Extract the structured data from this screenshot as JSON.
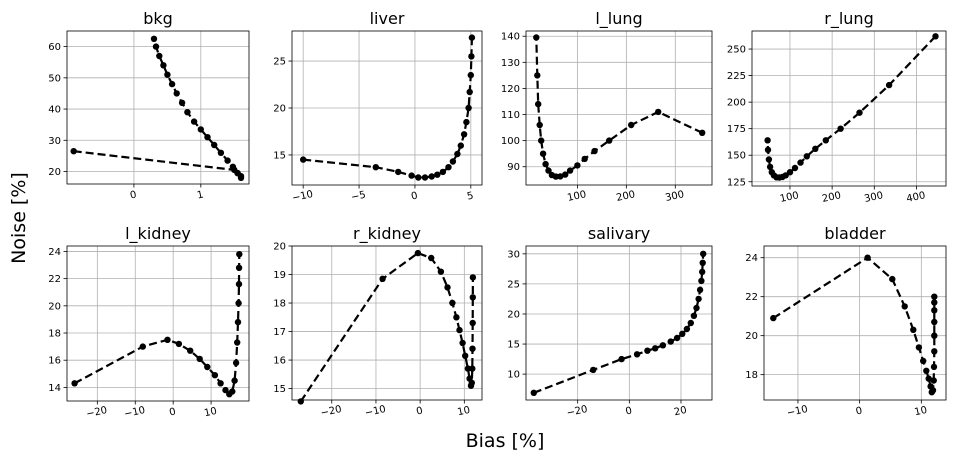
{
  "figure": {
    "xlabel": "Bias [%]",
    "ylabel": "Noise [%]"
  },
  "chart_data": [
    {
      "type": "line",
      "title": "bkg",
      "xlim": [
        -1.0,
        1.72
      ],
      "ylim": [
        16,
        65
      ],
      "xticks": [
        0,
        1
      ],
      "yticks": [
        20,
        30,
        40,
        50,
        60
      ],
      "grid": true,
      "x": [
        -0.9,
        1.5,
        1.55,
        1.6,
        1.6,
        1.55,
        1.48,
        1.4,
        1.3,
        1.2,
        1.1,
        1.0,
        0.9,
        0.8,
        0.72,
        0.64,
        0.57,
        0.5,
        0.44,
        0.38,
        0.33,
        0.3
      ],
      "y": [
        26.5,
        20.5,
        19.5,
        18.5,
        18.0,
        19.5,
        21.5,
        23.5,
        26.0,
        28.5,
        31.0,
        33.5,
        36.0,
        39.0,
        42.0,
        45.0,
        48.0,
        51.0,
        54.0,
        57.0,
        60.0,
        62.5
      ]
    },
    {
      "type": "line",
      "title": "liver",
      "xlim": [
        -11,
        6
      ],
      "ylim": [
        11.8,
        28.2
      ],
      "xticks": [
        -10,
        -5,
        0,
        5
      ],
      "yticks": [
        15,
        20,
        25
      ],
      "grid": true,
      "x": [
        -10,
        -3.5,
        -1.5,
        -0.3,
        0.3,
        0.9,
        1.5,
        2.0,
        2.5,
        3.0,
        3.4,
        3.8,
        4.1,
        4.4,
        4.6,
        4.8,
        4.9,
        5.0,
        5.05,
        5.1
      ],
      "y": [
        14.5,
        13.7,
        13.2,
        12.8,
        12.6,
        12.6,
        12.7,
        12.9,
        13.2,
        13.7,
        14.3,
        15.1,
        16.0,
        17.2,
        18.5,
        20.0,
        21.7,
        23.5,
        25.5,
        27.5
      ]
    },
    {
      "type": "line",
      "title": "l_lung",
      "xlim": [
        -5,
        375
      ],
      "ylim": [
        83,
        142
      ],
      "xticks": [
        100,
        200,
        300
      ],
      "yticks": [
        90,
        100,
        110,
        120,
        130,
        140
      ],
      "grid": true,
      "x": [
        355,
        265,
        210,
        165,
        135,
        115,
        100,
        85,
        75,
        65,
        56,
        48,
        41,
        35,
        30,
        26,
        23,
        20,
        18,
        16
      ],
      "y": [
        103,
        111,
        106,
        100,
        96,
        93,
        90.5,
        88.5,
        87,
        86.3,
        86.2,
        86.8,
        88.5,
        91,
        95,
        100,
        106,
        114,
        125,
        139.5
      ]
    },
    {
      "type": "line",
      "title": "r_lung",
      "xlim": [
        10,
        470
      ],
      "ylim": [
        121,
        267
      ],
      "xticks": [
        100,
        200,
        300,
        400
      ],
      "yticks": [
        125,
        150,
        175,
        200,
        225,
        250
      ],
      "grid": true,
      "x": [
        445,
        335,
        265,
        220,
        185,
        160,
        140,
        125,
        112,
        100,
        90,
        82,
        75,
        68,
        62,
        57,
        53,
        50,
        48,
        47
      ],
      "y": [
        262,
        216,
        190,
        175,
        164,
        156,
        149,
        143,
        138,
        134,
        131,
        129.5,
        129,
        129.2,
        131,
        134,
        139,
        146,
        155,
        164
      ]
    },
    {
      "type": "line",
      "title": "l_kidney",
      "xlim": [
        -28,
        20
      ],
      "ylim": [
        13.0,
        24.4
      ],
      "xticks": [
        -20,
        -10,
        0,
        10
      ],
      "yticks": [
        14,
        16,
        18,
        20,
        22,
        24
      ],
      "grid": true,
      "x": [
        -26,
        -8,
        -1.5,
        1.5,
        4.5,
        7,
        9,
        11,
        12.5,
        13.8,
        14.8,
        15.6,
        16.2,
        16.6,
        16.9,
        17.1,
        17.25,
        17.35,
        17.4,
        17.45
      ],
      "y": [
        14.3,
        17.0,
        17.5,
        17.2,
        16.7,
        16.1,
        15.5,
        14.9,
        14.3,
        13.8,
        13.5,
        13.7,
        14.5,
        15.8,
        17.3,
        18.8,
        20.2,
        21.6,
        22.8,
        23.8
      ]
    },
    {
      "type": "line",
      "title": "r_kidney",
      "xlim": [
        -29,
        14
      ],
      "ylim": [
        14.6,
        20.0
      ],
      "xticks": [
        -20,
        -10,
        0,
        10
      ],
      "yticks": [
        15,
        16,
        17,
        18,
        19,
        20
      ],
      "grid": true,
      "x": [
        -27,
        -8.5,
        -0.5,
        2.5,
        4.7,
        6.2,
        7.3,
        8.2,
        8.9,
        9.6,
        10.2,
        10.8,
        11.2,
        11.5,
        11.7,
        11.8,
        11.85,
        11.9,
        11.92,
        11.95
      ],
      "y": [
        14.55,
        18.85,
        19.75,
        19.58,
        19.1,
        18.55,
        18.0,
        17.5,
        17.05,
        16.6,
        16.15,
        15.7,
        15.35,
        15.1,
        15.2,
        15.7,
        16.4,
        17.3,
        18.2,
        18.9
      ]
    },
    {
      "type": "line",
      "title": "salivary",
      "xlim": [
        -40,
        32
      ],
      "ylim": [
        5.7,
        31.3
      ],
      "xticks": [
        -20,
        0,
        20
      ],
      "yticks": [
        10,
        15,
        20,
        25,
        30
      ],
      "grid": true,
      "x": [
        -37,
        -14,
        -3,
        3,
        7,
        10,
        13,
        16,
        18.5,
        20.5,
        22.3,
        23.8,
        25,
        26,
        26.8,
        27.4,
        27.9,
        28.2,
        28.4,
        28.6
      ],
      "y": [
        6.9,
        10.7,
        12.5,
        13.3,
        13.9,
        14.3,
        14.8,
        15.4,
        16.0,
        16.7,
        17.5,
        18.5,
        19.7,
        21.0,
        22.5,
        24.0,
        25.5,
        27.0,
        28.5,
        30.0
      ]
    },
    {
      "type": "line",
      "title": "bladder",
      "xlim": [
        -15.5,
        14
      ],
      "ylim": [
        16.7,
        24.6
      ],
      "xticks": [
        -10,
        0,
        10
      ],
      "yticks": [
        18,
        20,
        22,
        24
      ],
      "grid": true,
      "x": [
        -14,
        1.3,
        5.3,
        7.3,
        8.7,
        9.6,
        10.3,
        10.8,
        11.2,
        11.5,
        11.7,
        11.9,
        12.0,
        12.05,
        12.1,
        12.1,
        12.1,
        12.1,
        12.1,
        12.1
      ],
      "y": [
        20.9,
        24.0,
        22.9,
        21.5,
        20.3,
        19.4,
        18.7,
        18.2,
        17.8,
        17.4,
        17.1,
        17.2,
        17.7,
        18.4,
        19.2,
        20.0,
        20.7,
        21.3,
        21.7,
        22.0
      ]
    }
  ]
}
